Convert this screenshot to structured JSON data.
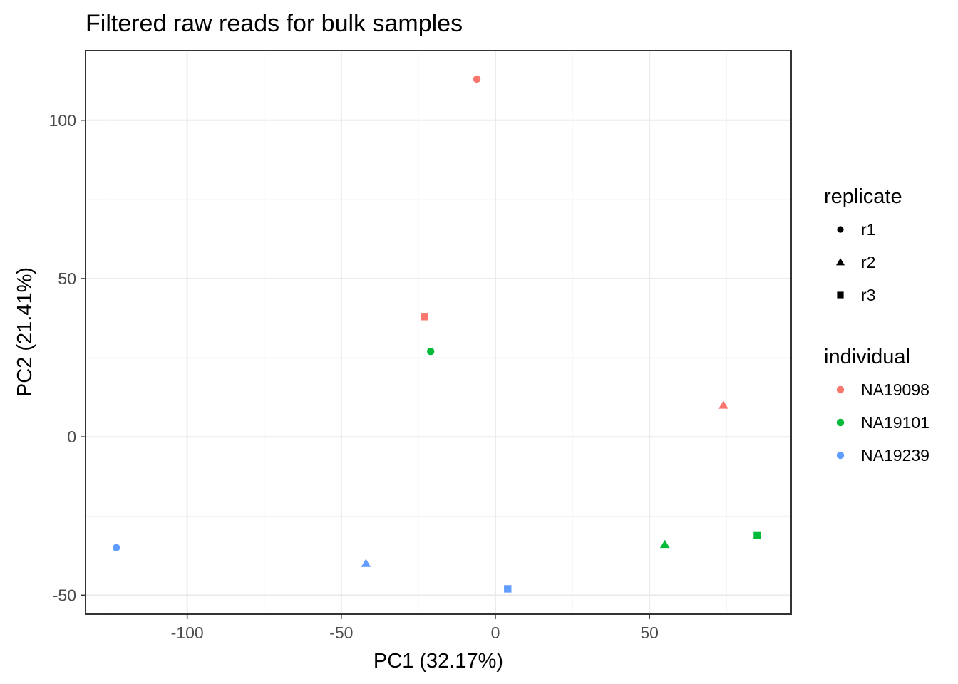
{
  "chart_data": {
    "type": "scatter",
    "title": "Filtered raw reads for bulk samples",
    "xlabel": "PC1 (32.17%)",
    "ylabel": "PC2 (21.41%)",
    "xlim": [
      -133,
      96
    ],
    "ylim": [
      -56,
      122
    ],
    "xticks": [
      -100,
      -50,
      0,
      50
    ],
    "xtick_labels": [
      "-100",
      "-50",
      "0",
      "50"
    ],
    "yticks": [
      -50,
      0,
      50,
      100
    ],
    "ytick_labels": [
      "-50",
      "0",
      "50",
      "100"
    ],
    "xminor": [
      -125,
      -75,
      -25,
      25,
      75
    ],
    "yminor": [
      -25,
      25,
      75
    ],
    "grid": true,
    "legend_position": "right",
    "legends": [
      {
        "title": "replicate",
        "kind": "shape",
        "entries": [
          {
            "label": "r1",
            "shape": "circle"
          },
          {
            "label": "r2",
            "shape": "triangle"
          },
          {
            "label": "r3",
            "shape": "square"
          }
        ]
      },
      {
        "title": "individual",
        "kind": "color",
        "entries": [
          {
            "label": "NA19098",
            "color": "#F8766D"
          },
          {
            "label": "NA19101",
            "color": "#00BA38"
          },
          {
            "label": "NA19239",
            "color": "#619CFF"
          }
        ]
      }
    ],
    "points": [
      {
        "individual": "NA19098",
        "replicate": "r1",
        "x": -6,
        "y": 113
      },
      {
        "individual": "NA19098",
        "replicate": "r2",
        "x": 74,
        "y": 10
      },
      {
        "individual": "NA19098",
        "replicate": "r3",
        "x": -23,
        "y": 38
      },
      {
        "individual": "NA19101",
        "replicate": "r1",
        "x": -21,
        "y": 27
      },
      {
        "individual": "NA19101",
        "replicate": "r2",
        "x": 55,
        "y": -34
      },
      {
        "individual": "NA19101",
        "replicate": "r3",
        "x": 85,
        "y": -31
      },
      {
        "individual": "NA19239",
        "replicate": "r1",
        "x": -123,
        "y": -35
      },
      {
        "individual": "NA19239",
        "replicate": "r2",
        "x": -42,
        "y": -40
      },
      {
        "individual": "NA19239",
        "replicate": "r3",
        "x": 4,
        "y": -48
      }
    ]
  }
}
